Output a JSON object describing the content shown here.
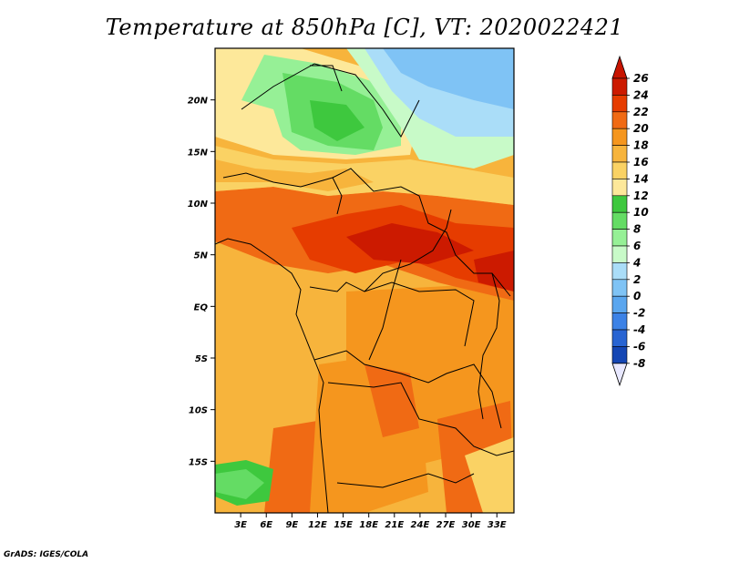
{
  "title": "Temperature at 850hPa [C], VT: 2020022421",
  "credit": "GrADS: IGES/COLA",
  "map": {
    "lon_range": [
      0,
      35
    ],
    "lat_range": [
      -20,
      25
    ],
    "lon_ticks": [
      "3E",
      "6E",
      "9E",
      "12E",
      "15E",
      "18E",
      "21E",
      "24E",
      "27E",
      "30E",
      "33E"
    ],
    "lat_ticks": [
      "20N",
      "15N",
      "10N",
      "5N",
      "EQ",
      "5S",
      "10S",
      "15S"
    ]
  },
  "colorbar": {
    "labels": [
      "26",
      "24",
      "22",
      "20",
      "18",
      "16",
      "14",
      "12",
      "10",
      "8",
      "6",
      "4",
      "2",
      "0",
      "-2",
      "-4",
      "-6",
      "-8"
    ],
    "colors": [
      "#cc1a00",
      "#e63c00",
      "#f06a14",
      "#f5961e",
      "#f7b43c",
      "#fad264",
      "#fde89a",
      "#3ec83e",
      "#64dc64",
      "#96f096",
      "#c8fac8",
      "#aaddf8",
      "#7fc3f5",
      "#5aa6ef",
      "#3c82e6",
      "#2864d2",
      "#1446b4",
      "#0a2890",
      "#001060"
    ],
    "arrow_top": "#c81400",
    "arrow_bottom": "#e8e8ff"
  }
}
